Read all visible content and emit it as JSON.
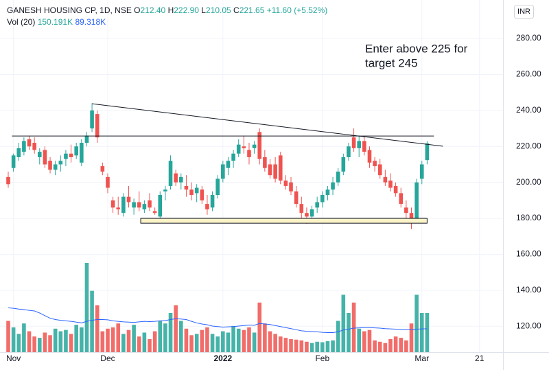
{
  "chart_data": {
    "type": "candlestick",
    "header": {
      "symbol": "GANESH HOUSING CP, 1D, NSE",
      "ohlc": [
        {
          "label": "O",
          "value": "212.40"
        },
        {
          "label": "H",
          "value": "222.90"
        },
        {
          "label": "L",
          "value": "210.05"
        },
        {
          "label": "C",
          "value": "221.65"
        }
      ],
      "change": "+11.60 (+5.52%)",
      "volume_label": "Vol (20)",
      "volume": "150.191K",
      "volume_ma": "89.318K"
    },
    "currency": "INR",
    "annotation_text": [
      "Enter above 225 for",
      "target 245"
    ],
    "annotation_color": "#f23645",
    "up_color": "#26a69a",
    "down_color": "#ef5350",
    "ma_color": "#2962ff",
    "grid": true,
    "categories": [
      null,
      "Nov",
      null,
      null,
      null,
      null,
      null,
      null,
      null,
      null,
      null,
      null,
      null,
      null,
      null,
      null,
      null,
      null,
      null,
      "Dec",
      null,
      null,
      null,
      null,
      null,
      null,
      null,
      null,
      null,
      null,
      null,
      null,
      null,
      null,
      null,
      null,
      null,
      null,
      null,
      null,
      null,
      "2022",
      null,
      null,
      null,
      null,
      null,
      null,
      null,
      null,
      null,
      null,
      null,
      null,
      null,
      null,
      null,
      null,
      null,
      null,
      "Feb",
      null,
      null,
      null,
      null,
      null,
      null,
      null,
      null,
      null,
      null,
      null,
      null,
      null,
      null,
      null,
      null,
      null,
      null,
      "Mar",
      null,
      null,
      null,
      null,
      null,
      null,
      null,
      null,
      null,
      null,
      "21"
    ],
    "open": [
      203,
      208,
      214,
      217,
      224,
      222,
      214,
      218,
      212,
      207,
      210,
      213,
      216,
      215,
      211,
      222,
      230,
      238,
      209,
      203,
      190,
      186,
      183,
      192,
      186,
      189,
      185,
      190,
      184,
      181,
      195,
      198,
      205,
      200,
      198,
      196,
      194,
      196,
      188,
      186,
      193,
      202,
      208,
      212,
      216,
      220,
      218,
      219,
      228,
      214,
      210,
      210,
      215,
      201,
      200,
      195,
      188,
      183,
      181,
      186,
      189,
      193,
      196,
      200,
      206,
      214,
      225,
      219,
      223,
      218,
      212,
      210,
      203,
      201,
      198,
      194,
      186,
      183,
      180,
      202,
      212.4,
      null,
      null,
      null,
      null,
      null,
      null,
      null,
      null,
      null,
      null
    ],
    "high": [
      206,
      216,
      222,
      225,
      226,
      225,
      219,
      220,
      214,
      212,
      215,
      218,
      221,
      222,
      224,
      228,
      244,
      240,
      211,
      205,
      192,
      192,
      194,
      198,
      191,
      195,
      190,
      194,
      186,
      195,
      198,
      215,
      207,
      205,
      204,
      200,
      199,
      198,
      193,
      195,
      204,
      212,
      214,
      218,
      224,
      226,
      222,
      223,
      230,
      218,
      213,
      214,
      217,
      204,
      203,
      198,
      192,
      186,
      187,
      192,
      195,
      198,
      203,
      208,
      216,
      222,
      230,
      226,
      226,
      220,
      214,
      213,
      207,
      205,
      200,
      197,
      190,
      186,
      202,
      212,
      222.9,
      null,
      null,
      null,
      null,
      null,
      null,
      null,
      null,
      null,
      null
    ],
    "low": [
      197,
      206,
      212,
      215,
      218,
      216,
      210,
      208,
      205,
      204,
      206,
      209,
      211,
      213,
      209,
      220,
      228,
      222,
      204,
      194,
      183,
      182,
      181,
      186,
      182,
      184,
      183,
      184,
      182,
      178,
      190,
      196,
      198,
      196,
      192,
      190,
      189,
      188,
      182,
      184,
      191,
      200,
      204,
      208,
      214,
      216,
      210,
      216,
      210,
      206,
      202,
      200,
      199,
      196,
      193,
      186,
      180,
      177,
      178,
      183,
      186,
      190,
      193,
      198,
      204,
      212,
      217,
      214,
      215,
      208,
      206,
      202,
      198,
      195,
      192,
      186,
      180,
      174,
      179,
      199,
      210.05,
      null,
      null,
      null,
      null,
      null,
      null,
      null,
      null,
      null,
      null
    ],
    "close": [
      199,
      215,
      219,
      223,
      220,
      218,
      217,
      210,
      207,
      210,
      212,
      216,
      214,
      220,
      222,
      226,
      240,
      225,
      206,
      197,
      186,
      185,
      192,
      189,
      189,
      186,
      188,
      186,
      183,
      193,
      196,
      212,
      200,
      203,
      196,
      193,
      197,
      190,
      185,
      193,
      202,
      210,
      212,
      216,
      221,
      219,
      214,
      221,
      213,
      208,
      204,
      202,
      201,
      198,
      195,
      188,
      183,
      181,
      185,
      189,
      193,
      196,
      200,
      206,
      214,
      220,
      219,
      223,
      217,
      211,
      209,
      204,
      200,
      197,
      194,
      188,
      183,
      178,
      200,
      210,
      221.65,
      null,
      null,
      null,
      null,
      null,
      null,
      null,
      null,
      null,
      null
    ],
    "volume": [
      120000,
      95000,
      70000,
      110000,
      80000,
      60000,
      55000,
      75000,
      65000,
      90000,
      80000,
      85000,
      70000,
      105000,
      95000,
      342000,
      235000,
      180000,
      80000,
      90000,
      95000,
      110000,
      70000,
      85000,
      105000,
      60000,
      75000,
      50000,
      80000,
      120000,
      110000,
      150000,
      180000,
      120000,
      90000,
      65000,
      70000,
      85000,
      95000,
      70000,
      60000,
      80000,
      75000,
      100000,
      90000,
      85000,
      95000,
      75000,
      190000,
      110000,
      80000,
      70000,
      60000,
      55000,
      50000,
      48000,
      45000,
      40000,
      35000,
      40000,
      38000,
      42000,
      45000,
      120000,
      220000,
      150000,
      190000,
      90000,
      80000,
      85000,
      45000,
      40000,
      35000,
      50000,
      60000,
      55000,
      45000,
      110000,
      220000,
      150000,
      150191,
      null,
      null,
      null,
      null,
      null,
      null,
      null,
      null,
      null,
      null
    ],
    "volume_ma": [
      170000,
      168000,
      165000,
      163000,
      160000,
      158000,
      150000,
      140000,
      130000,
      125000,
      122000,
      120000,
      118000,
      115000,
      112000,
      118000,
      122000,
      125000,
      125000,
      124000,
      120000,
      118000,
      116000,
      115000,
      114000,
      116000,
      118000,
      117000,
      118000,
      120000,
      121000,
      125000,
      128000,
      127000,
      125000,
      118000,
      112000,
      108000,
      105000,
      100000,
      98000,
      96000,
      97000,
      98000,
      100000,
      102000,
      104000,
      103000,
      110000,
      108000,
      106000,
      102000,
      98000,
      94000,
      90000,
      86000,
      82000,
      80000,
      79000,
      78000,
      76000,
      75000,
      75000,
      78000,
      85000,
      88000,
      92000,
      93000,
      94000,
      94000,
      93000,
      92000,
      90000,
      89000,
      88000,
      87000,
      86000,
      86000,
      88000,
      89000,
      89318,
      null,
      null,
      null,
      null,
      null,
      null,
      null,
      null,
      null,
      null
    ],
    "ylim": [
      105.6,
      301.4
    ],
    "yticks": [
      {
        "value": 120,
        "label": "120.00"
      },
      {
        "value": 140,
        "label": "140.00"
      },
      {
        "value": 160,
        "label": "160.00"
      },
      {
        "value": 180,
        "label": "180.00"
      },
      {
        "value": 200,
        "label": "200.00"
      },
      {
        "value": 220,
        "label": "220.00"
      },
      {
        "value": 240,
        "label": "240.00"
      },
      {
        "value": 260,
        "label": "260.00"
      },
      {
        "value": 280,
        "label": "280.00"
      }
    ],
    "drawings": {
      "trendline": {
        "x": [
          16,
          83
        ],
        "y": [
          243.7,
          220.1
        ]
      },
      "resistance": {
        "x": [
          0.7,
          81.3
        ],
        "y": [
          225.8,
          225.8
        ]
      },
      "support_zone": {
        "x": [
          25.3,
          80
        ],
        "y": [
          177.3,
          180
        ]
      }
    }
  }
}
